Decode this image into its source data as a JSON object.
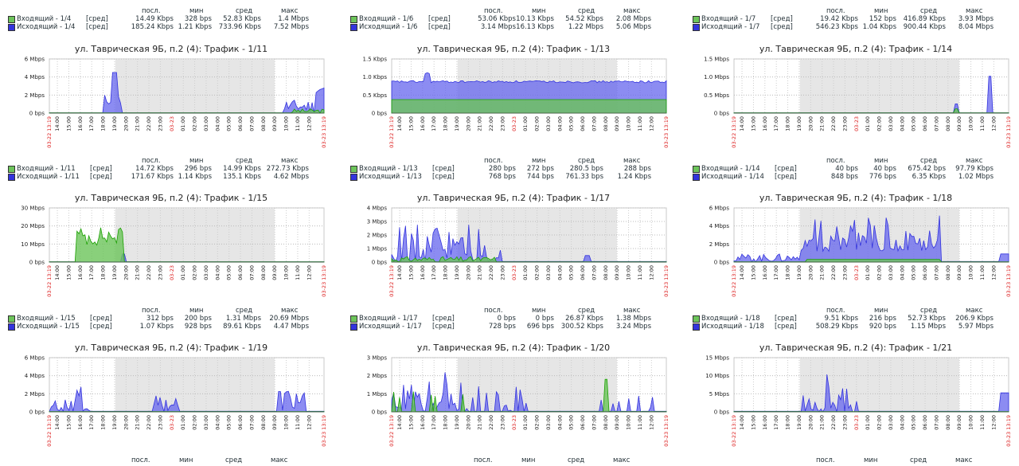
{
  "legend_headers": {
    "last": "посл.",
    "min": "мин",
    "avg": "сред",
    "max": "макс"
  },
  "func": "[сред]",
  "colors": {
    "in": "#1aa000",
    "out": "#3333dd",
    "in_fill": "#6cc45a",
    "out_fill": "#6666ee"
  },
  "x_time_labels": [
    "14:00",
    "15:00",
    "16:00",
    "17:00",
    "18:00",
    "19:00",
    "20:00",
    "21:00",
    "22:00",
    "23:00",
    "03-23",
    "01:00",
    "02:00",
    "03:00",
    "04:00",
    "05:00",
    "06:00",
    "07:00",
    "08:00",
    "09:00",
    "10:00",
    "11:00",
    "12:00"
  ],
  "x_start": "03-22 13:19",
  "x_end": "03-23 13:19",
  "top_legends": [
    {
      "in": {
        "label": "Входящий - 1/4",
        "last": "14.49 Kbps",
        "min": "328 bps",
        "avg": "52.83 Kbps",
        "max": "1.4 Mbps"
      },
      "out": {
        "label": "Исходящий - 1/4",
        "last": "185.24 Kbps",
        "min": "1.21 Kbps",
        "avg": "733.96 Kbps",
        "max": "7.52 Mbps"
      }
    },
    {
      "in": {
        "label": "Входящий - 1/6",
        "last": "53.06 Kbps",
        "min": "10.13 Kbps",
        "avg": "54.52 Kbps",
        "max": "2.08 Mbps"
      },
      "out": {
        "label": "Исходящий - 1/6",
        "last": "3.14 Mbps",
        "min": "16.13 Kbps",
        "avg": "1.22 Mbps",
        "max": "5.06 Mbps"
      }
    },
    {
      "in": {
        "label": "Входящий - 1/7",
        "last": "19.42 Kbps",
        "min": "152 bps",
        "avg": "416.89 Kbps",
        "max": "3.93 Mbps"
      },
      "out": {
        "label": "Исходящий - 1/7",
        "last": "546.23 Kbps",
        "min": "1.04 Kbps",
        "avg": "900.44 Kbps",
        "max": "8.04 Mbps"
      }
    }
  ],
  "charts": [
    {
      "title": "ул. Таврическая 9Б, п.2 (4): Трафик - 1/11",
      "yticks": [
        "6 Mbps",
        "4 Mbps",
        "2 Mbps",
        "0 bps"
      ],
      "legend": {
        "in": {
          "label": "Входящий - 1/11",
          "last": "14.72 Kbps",
          "min": "296 bps",
          "avg": "14.99 Kbps",
          "max": "272.73 Kbps"
        },
        "out": {
          "label": "Исходящий - 1/11",
          "last": "171.67 Kbps",
          "min": "1.14 Kbps",
          "avg": "135.1 Kbps",
          "max": "4.62 Mbps"
        }
      }
    },
    {
      "title": "ул. Таврическая 9Б, п.2 (4): Трафик - 1/13",
      "yticks": [
        "1.5 Kbps",
        "1.0 Kbps",
        "0.5 Kbps",
        "0 bps"
      ],
      "legend": {
        "in": {
          "label": "Входящий - 1/13",
          "last": "280 bps",
          "min": "272 bps",
          "avg": "280.5 bps",
          "max": "288 bps"
        },
        "out": {
          "label": "Исходящий - 1/13",
          "last": "768 bps",
          "min": "744 bps",
          "avg": "761.33 bps",
          "max": "1.24 Kbps"
        }
      }
    },
    {
      "title": "ул. Таврическая 9Б, п.2 (4): Трафик - 1/14",
      "yticks": [
        "1.5 Mbps",
        "1.0 Mbps",
        "0.5 Mbps",
        "0 bps"
      ],
      "legend": {
        "in": {
          "label": "Входящий - 1/14",
          "last": "40 bps",
          "min": "40 bps",
          "avg": "675.42 bps",
          "max": "97.79 Kbps"
        },
        "out": {
          "label": "Исходящий - 1/14",
          "last": "848 bps",
          "min": "776 bps",
          "avg": "6.35 Kbps",
          "max": "1.02 Mbps"
        }
      }
    },
    {
      "title": "ул. Таврическая 9Б, п.2 (4): Трафик - 1/15",
      "yticks": [
        "30 Mbps",
        "20 Mbps",
        "10 Mbps",
        "0 bps"
      ],
      "legend": {
        "in": {
          "label": "Входящий - 1/15",
          "last": "312 bps",
          "min": "200 bps",
          "avg": "1.31 Mbps",
          "max": "20.69 Mbps"
        },
        "out": {
          "label": "Исходящий - 1/15",
          "last": "1.07 Kbps",
          "min": "928 bps",
          "avg": "89.61 Kbps",
          "max": "4.47 Mbps"
        }
      }
    },
    {
      "title": "ул. Таврическая 9Б, п.2 (4): Трафик - 1/17",
      "yticks": [
        "4 Mbps",
        "3 Mbps",
        "2 Mbps",
        "1 Mbps",
        "0 bps"
      ],
      "legend": {
        "in": {
          "label": "Входящий - 1/17",
          "last": "0 bps",
          "min": "0 bps",
          "avg": "26.87 Kbps",
          "max": "1.38 Mbps"
        },
        "out": {
          "label": "Исходящий - 1/17",
          "last": "728 bps",
          "min": "696 bps",
          "avg": "300.52 Kbps",
          "max": "3.24 Mbps"
        }
      }
    },
    {
      "title": "ул. Таврическая 9Б, п.2 (4): Трафик - 1/18",
      "yticks": [
        "6 Mbps",
        "4 Mbps",
        "2 Mbps",
        "0 bps"
      ],
      "legend": {
        "in": {
          "label": "Входящий - 1/18",
          "last": "9.51 Kbps",
          "min": "216 bps",
          "avg": "52.73 Kbps",
          "max": "206.9 Kbps"
        },
        "out": {
          "label": "Исходящий - 1/18",
          "last": "508.29 Kbps",
          "min": "920 bps",
          "avg": "1.15 Mbps",
          "max": "5.97 Mbps"
        }
      }
    },
    {
      "title": "ул. Таврическая 9Б, п.2 (4): Трафик - 1/19",
      "yticks": [
        "6 Mbps",
        "4 Mbps",
        "2 Mbps",
        "0 bps"
      ],
      "legend": null
    },
    {
      "title": "ул. Таврическая 9Б, п.2 (4): Трафик - 1/20",
      "yticks": [
        "3 Mbps",
        "2 Mbps",
        "1 Mbps",
        "0 bps"
      ],
      "legend": null
    },
    {
      "title": "ул. Таврическая 9Б, п.2 (4): Трафик - 1/21",
      "yticks": [
        "15 Mbps",
        "10 Mbps",
        "5 Mbps",
        "0 bps"
      ],
      "legend": null
    }
  ]
}
